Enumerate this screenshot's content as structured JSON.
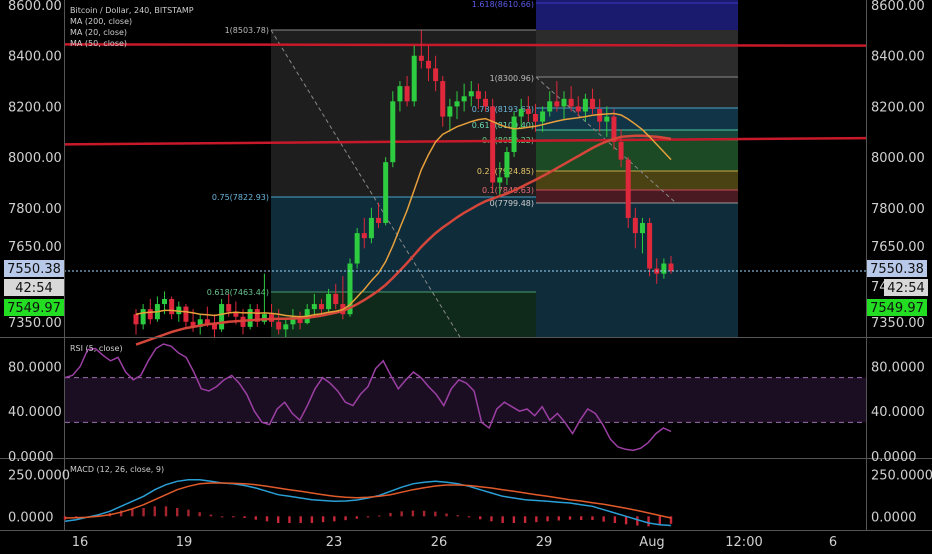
{
  "header": {
    "title": "Bitcoin / Dollar, 240, BITSTAMP",
    "indicators": [
      "MA (200, close)",
      "MA (20, close)",
      "MA (50, close)"
    ]
  },
  "colors": {
    "background": "#000000",
    "up": "#2ecc40",
    "down": "#e0283c",
    "ma200": "#c8192a",
    "ma50": "#d4453a",
    "ma20": "#e8a03c",
    "rsi": "#9b3fa3",
    "macd": "#2a9fd6",
    "signal": "#e05a2a",
    "price_line": "#7fe0ff"
  },
  "chart_data": [
    {
      "type": "candlestick",
      "title": "Bitcoin / Dollar, 240, BITSTAMP",
      "ylim": [
        7290,
        8620
      ],
      "y_ticks": [
        7350,
        7650,
        7800,
        8000,
        8200,
        8400,
        8600
      ],
      "y_tick_labels": [
        "7350.00",
        "7650.00",
        "7800.00",
        "8000.00",
        "8200.00",
        "8400.00",
        "8600.00"
      ],
      "x_tick_labels": [
        "16",
        "19",
        "23",
        "26",
        "29",
        "Aug",
        "12:00",
        "6"
      ],
      "last_price": "7550.38",
      "countdown": "42:54",
      "bid_price": "7549.97",
      "hidden_axis_label_partial": "74",
      "series_names": [
        "MA (200, close)",
        "MA (20, close)",
        "MA (50, close)"
      ],
      "ohlc": [
        [
          7380,
          7400,
          7300,
          7340
        ],
        [
          7340,
          7420,
          7320,
          7400
        ],
        [
          7400,
          7440,
          7340,
          7360
        ],
        [
          7360,
          7450,
          7350,
          7420
        ],
        [
          7420,
          7470,
          7380,
          7440
        ],
        [
          7440,
          7450,
          7360,
          7380
        ],
        [
          7380,
          7430,
          7350,
          7410
        ],
        [
          7410,
          7420,
          7330,
          7350
        ],
        [
          7350,
          7400,
          7310,
          7330
        ],
        [
          7330,
          7380,
          7300,
          7360
        ],
        [
          7360,
          7410,
          7330,
          7340
        ],
        [
          7340,
          7380,
          7290,
          7320
        ],
        [
          7320,
          7440,
          7310,
          7420
        ],
        [
          7420,
          7460,
          7370,
          7390
        ],
        [
          7390,
          7430,
          7340,
          7370
        ],
        [
          7370,
          7400,
          7300,
          7330
        ],
        [
          7330,
          7420,
          7320,
          7400
        ],
        [
          7400,
          7420,
          7330,
          7350
        ],
        [
          7350,
          7540,
          7340,
          7380
        ],
        [
          7380,
          7420,
          7330,
          7350
        ],
        [
          7350,
          7400,
          7300,
          7320
        ],
        [
          7320,
          7360,
          7290,
          7340
        ],
        [
          7340,
          7400,
          7320,
          7370
        ],
        [
          7370,
          7390,
          7320,
          7345
        ],
        [
          7345,
          7420,
          7340,
          7400
        ],
        [
          7400,
          7460,
          7370,
          7420
        ],
        [
          7420,
          7440,
          7380,
          7400
        ],
        [
          7400,
          7480,
          7390,
          7460
        ],
        [
          7460,
          7500,
          7400,
          7420
        ],
        [
          7420,
          7530,
          7360,
          7380
        ],
        [
          7380,
          7600,
          7370,
          7580
        ],
        [
          7580,
          7720,
          7560,
          7700
        ],
        [
          7700,
          7760,
          7640,
          7680
        ],
        [
          7680,
          7800,
          7660,
          7760
        ],
        [
          7760,
          7820,
          7720,
          7740
        ],
        [
          7740,
          8000,
          7730,
          7980
        ],
        [
          7980,
          8260,
          7960,
          8220
        ],
        [
          8220,
          8300,
          8180,
          8280
        ],
        [
          8280,
          8320,
          8200,
          8220
        ],
        [
          8220,
          8440,
          8200,
          8400
        ],
        [
          8400,
          8500,
          8350,
          8380
        ],
        [
          8380,
          8440,
          8300,
          8350
        ],
        [
          8350,
          8400,
          8260,
          8300
        ],
        [
          8300,
          8320,
          8120,
          8160
        ],
        [
          8160,
          8230,
          8100,
          8200
        ],
        [
          8200,
          8260,
          8150,
          8220
        ],
        [
          8220,
          8290,
          8180,
          8240
        ],
        [
          8240,
          8300,
          8200,
          8260
        ],
        [
          8260,
          8290,
          8190,
          8230
        ],
        [
          8230,
          8260,
          8180,
          8200
        ],
        [
          8200,
          8230,
          7870,
          7900
        ],
        [
          7900,
          7980,
          7850,
          7920
        ],
        [
          7920,
          8040,
          7890,
          8020
        ],
        [
          8020,
          8180,
          8000,
          8160
        ],
        [
          8160,
          8230,
          8110,
          8190
        ],
        [
          8190,
          8240,
          8140,
          8170
        ],
        [
          8170,
          8210,
          8100,
          8140
        ],
        [
          8140,
          8200,
          8100,
          8180
        ],
        [
          8180,
          8260,
          8160,
          8220
        ],
        [
          8220,
          8300,
          8180,
          8200
        ],
        [
          8200,
          8260,
          8150,
          8230
        ],
        [
          8230,
          8280,
          8180,
          8200
        ],
        [
          8200,
          8240,
          8160,
          8180
        ],
        [
          8180,
          8250,
          8140,
          8230
        ],
        [
          8230,
          8270,
          8170,
          8190
        ],
        [
          8190,
          8230,
          8100,
          8140
        ],
        [
          8140,
          8200,
          8080,
          8160
        ],
        [
          8160,
          8190,
          8030,
          8060
        ],
        [
          8060,
          8110,
          7960,
          7990
        ],
        [
          7990,
          8000,
          7720,
          7760
        ],
        [
          7760,
          7800,
          7640,
          7700
        ],
        [
          7700,
          7760,
          7620,
          7740
        ],
        [
          7740,
          7760,
          7530,
          7560
        ],
        [
          7560,
          7600,
          7500,
          7540
        ],
        [
          7540,
          7600,
          7520,
          7580
        ],
        [
          7580,
          7610,
          7540,
          7550
        ]
      ],
      "ma_20": [
        7380,
        7385,
        7388,
        7390,
        7395,
        7395,
        7392,
        7390,
        7385,
        7380,
        7378,
        7375,
        7380,
        7385,
        7388,
        7385,
        7386,
        7384,
        7385,
        7383,
        7380,
        7375,
        7372,
        7370,
        7372,
        7378,
        7382,
        7388,
        7392,
        7398,
        7418,
        7448,
        7478,
        7512,
        7542,
        7588,
        7650,
        7720,
        7790,
        7870,
        7950,
        8010,
        8060,
        8090,
        8105,
        8120,
        8130,
        8140,
        8148,
        8152,
        8140,
        8128,
        8118,
        8112,
        8114,
        8118,
        8122,
        8128,
        8135,
        8142,
        8148,
        8152,
        8155,
        8160,
        8165,
        8168,
        8170,
        8172,
        8166,
        8150,
        8130,
        8108,
        8080,
        8050,
        8020,
        7990
      ],
      "ma_50": [
        7260,
        7270,
        7280,
        7290,
        7300,
        7310,
        7318,
        7325,
        7330,
        7335,
        7340,
        7343,
        7346,
        7350,
        7352,
        7354,
        7356,
        7358,
        7360,
        7361,
        7362,
        7362,
        7363,
        7364,
        7366,
        7370,
        7374,
        7380,
        7386,
        7393,
        7405,
        7420,
        7436,
        7454,
        7473,
        7496,
        7523,
        7552,
        7582,
        7614,
        7646,
        7674,
        7700,
        7722,
        7742,
        7762,
        7780,
        7796,
        7812,
        7826,
        7836,
        7846,
        7856,
        7868,
        7882,
        7896,
        7910,
        7925,
        7940,
        7956,
        7972,
        7988,
        8004,
        8020,
        8036,
        8050,
        8062,
        8072,
        8080,
        8082,
        8084,
        8084,
        8082,
        8080,
        8076,
        8072
      ],
      "ma_200_a": [
        8445,
        8440
      ],
      "ma_200_b": [
        8050,
        8075
      ],
      "fib_1": {
        "levels": [
          {
            "label": "1(8503.78)",
            "price": 8503.78
          },
          {
            "label": "0.75(7822.93)",
            "price": 7822.93
          },
          {
            "label": "0.618(7463.44)",
            "price": 7463.44
          }
        ]
      },
      "fib_2": {
        "levels": [
          {
            "label": "1.618(8610.66)",
            "price": 8610.66
          },
          {
            "label": "1(8300.96)",
            "price": 8300.96
          },
          {
            "label": "0.786(8193.63)",
            "price": 8193.63
          },
          {
            "label": "0.618(8109.40)",
            "price": 8109.4
          },
          {
            "label": "0.5(8050.22)",
            "price": 8050.22
          },
          {
            "label": "0.25(7924.85)",
            "price": 7924.85
          },
          {
            "label": "0.1(7849.63)",
            "price": 7849.63
          },
          {
            "label": "0(7799.48)",
            "price": 7799.48
          }
        ]
      }
    },
    {
      "type": "line",
      "title": "RSI (5, close)",
      "ylim": [
        0,
        100
      ],
      "y_ticks": [
        0,
        40,
        80
      ],
      "y_tick_labels": [
        "0.0000",
        "40.0000",
        "80.0000"
      ],
      "bands": [
        30,
        70
      ],
      "values": [
        70,
        72,
        80,
        95,
        96,
        90,
        85,
        88,
        75,
        68,
        72,
        85,
        96,
        100,
        98,
        92,
        88,
        75,
        60,
        58,
        62,
        68,
        72,
        65,
        55,
        40,
        30,
        28,
        42,
        48,
        38,
        32,
        45,
        60,
        70,
        65,
        58,
        48,
        45,
        55,
        62,
        78,
        85,
        72,
        60,
        68,
        75,
        70,
        62,
        55,
        45,
        60,
        68,
        65,
        58,
        30,
        25,
        42,
        48,
        44,
        40,
        42,
        36,
        44,
        32,
        38,
        30,
        20,
        32,
        42,
        38,
        28,
        15,
        8,
        6,
        5,
        7,
        12,
        20,
        25,
        22
      ]
    },
    {
      "type": "bar",
      "title": "MACD (12, 26, close, 9)",
      "ylim": [
        -70,
        320
      ],
      "y_ticks": [
        0,
        250
      ],
      "y_tick_labels": [
        "0.0000",
        "250.0000"
      ],
      "series": [
        {
          "name": "MACD",
          "values": [
            -30,
            -20,
            -5,
            10,
            30,
            60,
            90,
            120,
            160,
            190,
            210,
            220,
            220,
            210,
            200,
            195,
            185,
            170,
            150,
            130,
            120,
            110,
            100,
            95,
            90,
            92,
            98,
            110,
            125,
            150,
            175,
            195,
            205,
            210,
            205,
            195,
            180,
            160,
            140,
            120,
            110,
            100,
            95,
            90,
            85,
            80,
            70,
            60,
            40,
            20,
            0,
            -20,
            -40,
            -50,
            -55
          ]
        },
        {
          "name": "Signal",
          "values": [
            -10,
            -8,
            -5,
            0,
            10,
            25,
            45,
            70,
            100,
            130,
            160,
            180,
            195,
            200,
            200,
            198,
            195,
            190,
            180,
            170,
            160,
            150,
            140,
            130,
            120,
            115,
            112,
            115,
            120,
            130,
            145,
            160,
            172,
            182,
            188,
            188,
            185,
            178,
            170,
            160,
            150,
            140,
            130,
            120,
            110,
            100,
            92,
            82,
            72,
            60,
            48,
            35,
            20,
            5,
            -10
          ]
        },
        {
          "name": "Histogram",
          "values": [
            -20,
            -12,
            0,
            10,
            20,
            35,
            45,
            50,
            60,
            60,
            50,
            40,
            25,
            10,
            0,
            -3,
            -10,
            -20,
            -30,
            -40,
            -40,
            -40,
            -40,
            -35,
            -30,
            -23,
            -14,
            -5,
            5,
            20,
            30,
            35,
            33,
            28,
            17,
            7,
            -5,
            -18,
            -30,
            -40,
            -40,
            -40,
            -35,
            -30,
            -25,
            -20,
            -22,
            -22,
            -32,
            -40,
            -48,
            -55,
            -60,
            -55,
            -45
          ]
        }
      ]
    }
  ]
}
